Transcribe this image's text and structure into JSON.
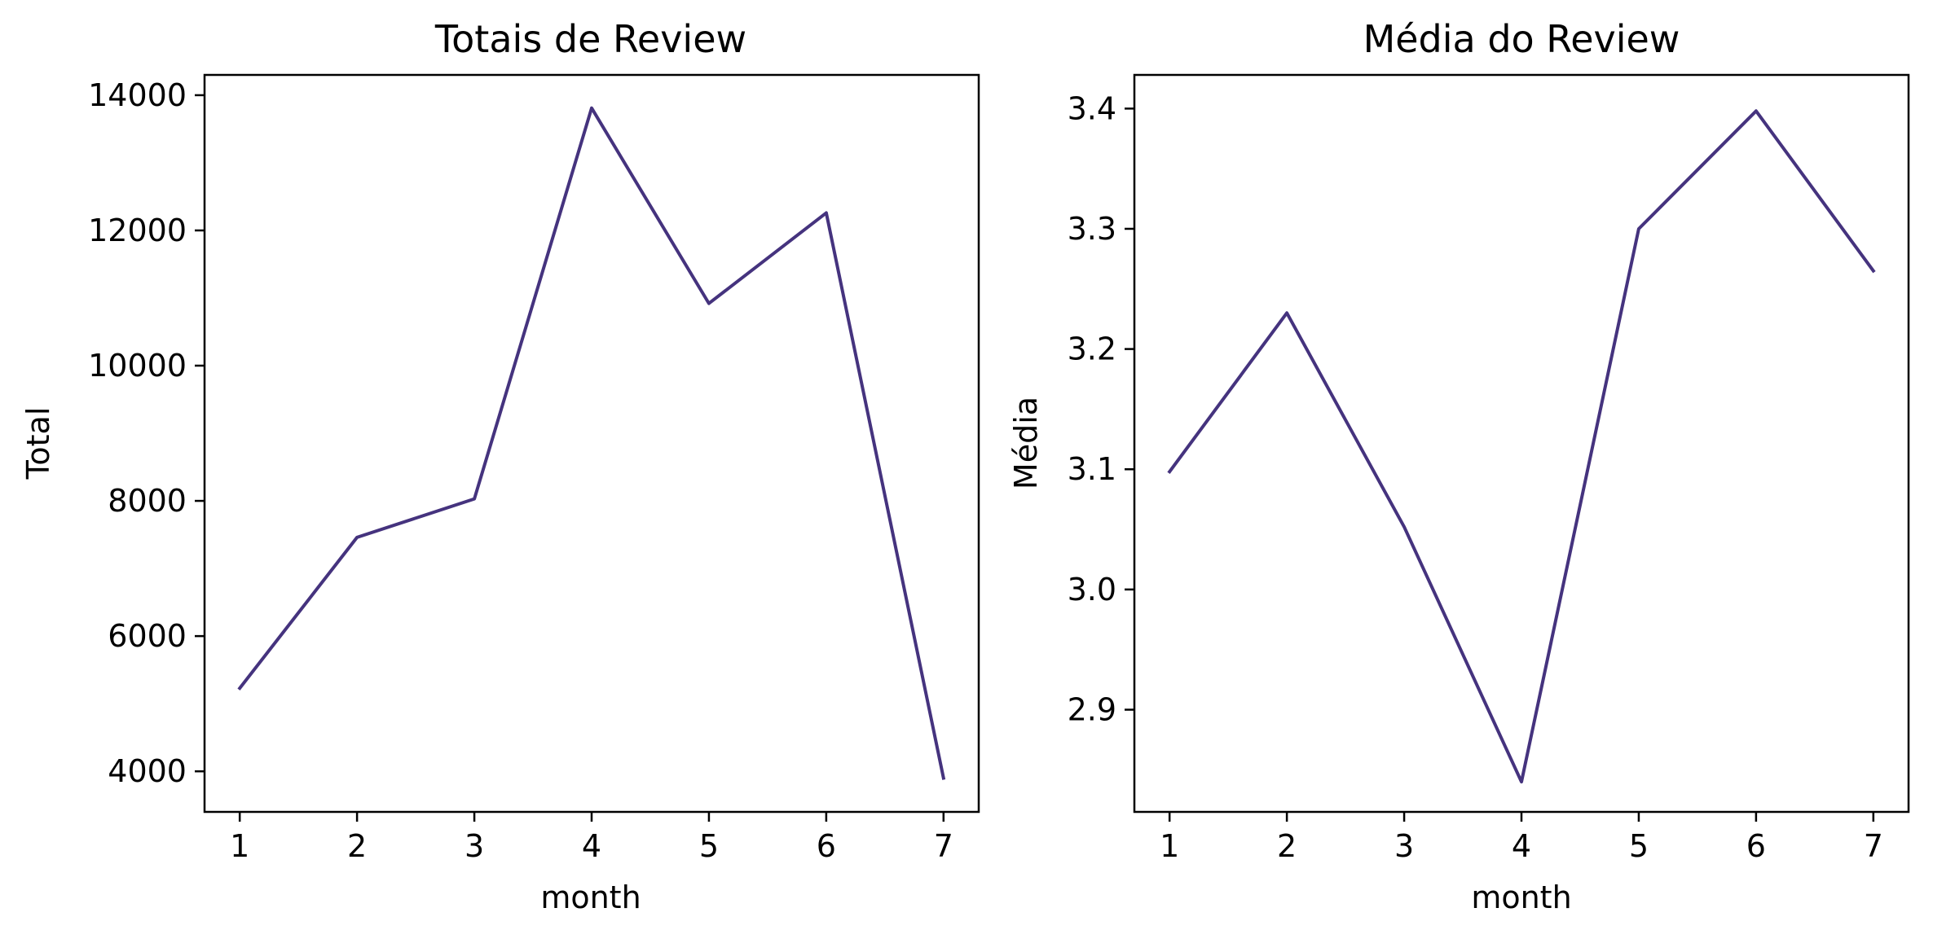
{
  "chart_data": [
    {
      "type": "line",
      "title": "Totais de Review",
      "xlabel": "month",
      "ylabel": "Total",
      "x": [
        1,
        2,
        3,
        4,
        5,
        6,
        7
      ],
      "series": [
        {
          "values": [
            5230,
            7460,
            8030,
            13810,
            10920,
            12260,
            3900
          ],
          "color": "#45337e"
        }
      ],
      "xlim": [
        0.7,
        7.3
      ],
      "ylim": [
        3400,
        14300
      ],
      "xticks": [
        1,
        2,
        3,
        4,
        5,
        6,
        7
      ],
      "yticks": [
        4000,
        6000,
        8000,
        10000,
        12000,
        14000
      ],
      "grid": false,
      "legend": "none"
    },
    {
      "type": "line",
      "title": "Média do Review",
      "xlabel": "month",
      "ylabel": "Média",
      "x": [
        1,
        2,
        3,
        4,
        5,
        6,
        7
      ],
      "series": [
        {
          "values": [
            3.098,
            3.23,
            3.052,
            2.84,
            3.3,
            3.398,
            3.265
          ],
          "color": "#45337e"
        }
      ],
      "xlim": [
        0.7,
        7.3
      ],
      "ylim": [
        2.815,
        3.428
      ],
      "xticks": [
        1,
        2,
        3,
        4,
        5,
        6,
        7
      ],
      "yticks": [
        2.9,
        3.0,
        3.1,
        3.2,
        3.3,
        3.4
      ],
      "ytick_labels": [
        "2.9",
        "3.0",
        "3.1",
        "3.2",
        "3.3",
        "3.4"
      ],
      "grid": false,
      "legend": "none"
    }
  ]
}
